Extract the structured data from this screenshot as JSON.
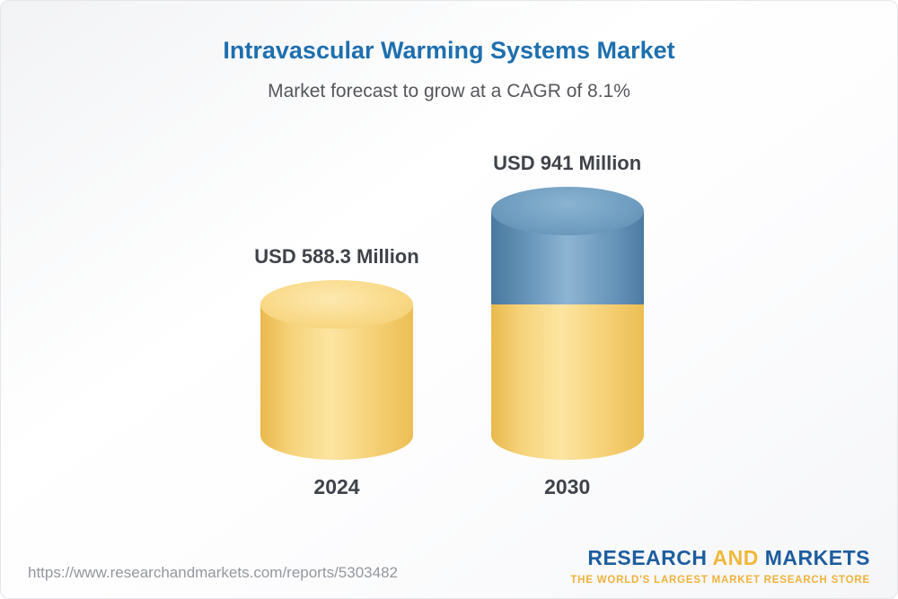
{
  "header": {
    "title": "Intravascular Warming Systems Market",
    "subtitle": "Market forecast to grow at a CAGR of 8.1%"
  },
  "chart_data": {
    "type": "bar",
    "title": "Intravascular Warming Systems Market",
    "subtitle": "Market forecast to grow at a CAGR of 8.1%",
    "unit": "USD Million",
    "cagr_percent": 8.1,
    "categories": [
      "2024",
      "2030"
    ],
    "values": [
      588.3,
      941
    ],
    "ylim": [
      0,
      941
    ],
    "grid": false,
    "legend": false,
    "bars": [
      {
        "year": "2024",
        "label": "USD 588.3 Million",
        "value": 588.3,
        "segments": [
          {
            "color": "yellow",
            "value": 588.3
          }
        ]
      },
      {
        "year": "2030",
        "label": "USD 941 Million",
        "value": 941,
        "segments": [
          {
            "color": "blue",
            "value": 352.7
          },
          {
            "color": "yellow",
            "value": 588.3
          }
        ]
      }
    ]
  },
  "footer": {
    "url": "https://www.researchandmarkets.com/reports/5303482",
    "logo": {
      "research": "RESEARCH",
      "and": "AND",
      "markets": "MARKETS",
      "tagline": "THE WORLD'S LARGEST MARKET RESEARCH STORE"
    }
  },
  "colors": {
    "title_blue": "#1e6fae",
    "bar_yellow": "#f5cf74",
    "bar_blue": "#6794ba",
    "logo_blue": "#1d5d9e",
    "logo_gold": "#f0b73c"
  }
}
